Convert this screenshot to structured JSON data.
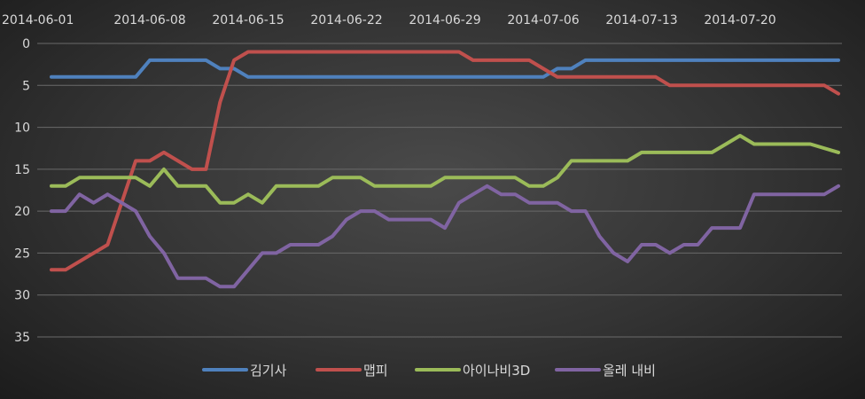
{
  "chart_data": {
    "type": "line",
    "title": "",
    "xlabel": "",
    "ylabel": "",
    "x_tick_labels": [
      "2014-06-01",
      "2014-06-08",
      "2014-06-15",
      "2014-06-22",
      "2014-06-29",
      "2014-07-06",
      "2014-07-13",
      "2014-07-20"
    ],
    "x_start": "2014-06-01",
    "x_end": "2014-07-27",
    "ylim": [
      0,
      35
    ],
    "y_inverted": true,
    "y_ticks": [
      0,
      5,
      10,
      15,
      20,
      25,
      30,
      35
    ],
    "grid": "horizontal",
    "legend_position": "bottom",
    "series": [
      {
        "name": "김기사",
        "color": "#4f81bd",
        "points": [
          [
            "2014-06-01",
            4
          ],
          [
            "2014-06-07",
            4
          ],
          [
            "2014-06-08",
            2
          ],
          [
            "2014-06-12",
            2
          ],
          [
            "2014-06-13",
            3
          ],
          [
            "2014-06-14",
            3
          ],
          [
            "2014-06-15",
            4
          ],
          [
            "2014-07-06",
            4
          ],
          [
            "2014-07-07",
            3
          ],
          [
            "2014-07-08",
            3
          ],
          [
            "2014-07-09",
            2
          ],
          [
            "2014-07-27",
            2
          ]
        ]
      },
      {
        "name": "맵피",
        "color": "#c0504d",
        "points": [
          [
            "2014-06-01",
            27
          ],
          [
            "2014-06-02",
            27
          ],
          [
            "2014-06-05",
            24
          ],
          [
            "2014-06-07",
            14
          ],
          [
            "2014-06-08",
            14
          ],
          [
            "2014-06-09",
            13
          ],
          [
            "2014-06-11",
            15
          ],
          [
            "2014-06-12",
            15
          ],
          [
            "2014-06-13",
            7
          ],
          [
            "2014-06-14",
            2
          ],
          [
            "2014-06-15",
            1
          ],
          [
            "2014-06-30",
            1
          ],
          [
            "2014-07-01",
            2
          ],
          [
            "2014-07-05",
            2
          ],
          [
            "2014-07-06",
            3
          ],
          [
            "2014-07-07",
            4
          ],
          [
            "2014-07-14",
            4
          ],
          [
            "2014-07-15",
            5
          ],
          [
            "2014-07-26",
            5
          ],
          [
            "2014-07-27",
            6
          ]
        ]
      },
      {
        "name": "아이나비3D",
        "color": "#9bbb59",
        "points": [
          [
            "2014-06-01",
            17
          ],
          [
            "2014-06-02",
            17
          ],
          [
            "2014-06-03",
            16
          ],
          [
            "2014-06-07",
            16
          ],
          [
            "2014-06-08",
            17
          ],
          [
            "2014-06-09",
            15
          ],
          [
            "2014-06-10",
            17
          ],
          [
            "2014-06-12",
            17
          ],
          [
            "2014-06-13",
            19
          ],
          [
            "2014-06-14",
            19
          ],
          [
            "2014-06-15",
            18
          ],
          [
            "2014-06-16",
            19
          ],
          [
            "2014-06-17",
            17
          ],
          [
            "2014-06-20",
            17
          ],
          [
            "2014-06-21",
            16
          ],
          [
            "2014-06-23",
            16
          ],
          [
            "2014-06-24",
            17
          ],
          [
            "2014-06-28",
            17
          ],
          [
            "2014-06-29",
            16
          ],
          [
            "2014-07-04",
            16
          ],
          [
            "2014-07-05",
            17
          ],
          [
            "2014-07-06",
            17
          ],
          [
            "2014-07-07",
            16
          ],
          [
            "2014-07-08",
            14
          ],
          [
            "2014-07-12",
            14
          ],
          [
            "2014-07-13",
            13
          ],
          [
            "2014-07-18",
            13
          ],
          [
            "2014-07-19",
            12
          ],
          [
            "2014-07-20",
            11
          ],
          [
            "2014-07-21",
            12
          ],
          [
            "2014-07-24",
            12
          ],
          [
            "2014-07-25",
            12
          ],
          [
            "2014-07-27",
            13
          ]
        ]
      },
      {
        "name": "올레 내비",
        "color": "#8064a2",
        "points": [
          [
            "2014-06-01",
            20
          ],
          [
            "2014-06-02",
            20
          ],
          [
            "2014-06-03",
            18
          ],
          [
            "2014-06-04",
            19
          ],
          [
            "2014-06-05",
            18
          ],
          [
            "2014-06-06",
            19
          ],
          [
            "2014-06-07",
            20
          ],
          [
            "2014-06-08",
            23
          ],
          [
            "2014-06-09",
            25
          ],
          [
            "2014-06-10",
            28
          ],
          [
            "2014-06-12",
            28
          ],
          [
            "2014-06-13",
            29
          ],
          [
            "2014-06-14",
            29
          ],
          [
            "2014-06-15",
            27
          ],
          [
            "2014-06-16",
            25
          ],
          [
            "2014-06-17",
            25
          ],
          [
            "2014-06-18",
            24
          ],
          [
            "2014-06-20",
            24
          ],
          [
            "2014-06-21",
            23
          ],
          [
            "2014-06-22",
            21
          ],
          [
            "2014-06-23",
            20
          ],
          [
            "2014-06-24",
            20
          ],
          [
            "2014-06-25",
            21
          ],
          [
            "2014-06-28",
            21
          ],
          [
            "2014-06-29",
            22
          ],
          [
            "2014-06-30",
            19
          ],
          [
            "2014-07-01",
            18
          ],
          [
            "2014-07-02",
            17
          ],
          [
            "2014-07-03",
            18
          ],
          [
            "2014-07-04",
            18
          ],
          [
            "2014-07-05",
            19
          ],
          [
            "2014-07-07",
            19
          ],
          [
            "2014-07-08",
            20
          ],
          [
            "2014-07-09",
            20
          ],
          [
            "2014-07-10",
            23
          ],
          [
            "2014-07-11",
            25
          ],
          [
            "2014-07-12",
            26
          ],
          [
            "2014-07-13",
            24
          ],
          [
            "2014-07-14",
            24
          ],
          [
            "2014-07-15",
            25
          ],
          [
            "2014-07-16",
            24
          ],
          [
            "2014-07-17",
            24
          ],
          [
            "2014-07-18",
            22
          ],
          [
            "2014-07-20",
            22
          ],
          [
            "2014-07-21",
            18
          ],
          [
            "2014-07-26",
            18
          ],
          [
            "2014-07-27",
            17
          ]
        ]
      }
    ]
  }
}
